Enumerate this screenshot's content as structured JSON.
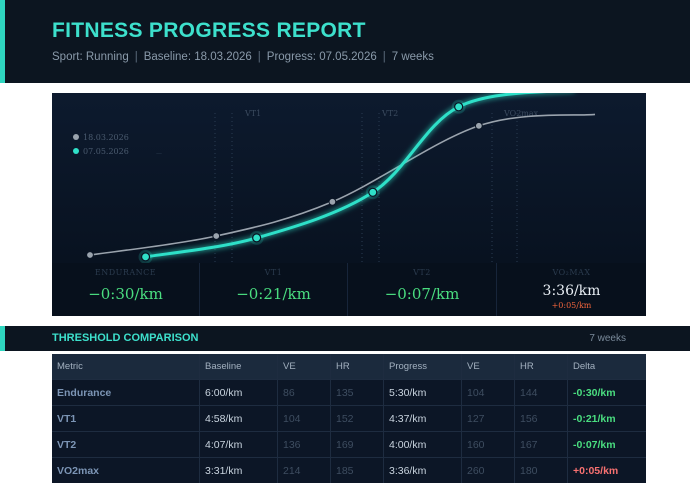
{
  "header": {
    "title": "FITNESS PROGRESS REPORT",
    "sport": "Sport: Running",
    "baseline": "Baseline: 18.03.2026",
    "progress": "Progress: 07.05.2026",
    "duration": "7 weeks"
  },
  "chart_data": {
    "type": "line",
    "legend": [
      "18.03.2026",
      "07.05.2026"
    ],
    "legend_placement": "top-left",
    "legend_extra": "—",
    "zone_labels": [
      "VT1",
      "VT2",
      "VO2max"
    ],
    "colors": {
      "baseline": "#9aa3ad",
      "progress": "#2fe0c8"
    },
    "series": [
      {
        "name": "18.03.2026",
        "points": [
          [
            0.0,
            0.0
          ],
          [
            0.25,
            0.1
          ],
          [
            0.48,
            0.28
          ],
          [
            0.77,
            0.68
          ]
        ]
      },
      {
        "name": "07.05.2026",
        "points": [
          [
            0.11,
            -0.01
          ],
          [
            0.33,
            0.09
          ],
          [
            0.56,
            0.33
          ],
          [
            0.73,
            0.78
          ]
        ]
      }
    ]
  },
  "stats": [
    {
      "label": "ENDURANCE",
      "value": "−0:30/km"
    },
    {
      "label": "VT1",
      "value": "−0:21/km"
    },
    {
      "label": "VT2",
      "value": "−0:07/km"
    },
    {
      "label": "VO₂MAX",
      "value": "3:36/km",
      "sub": "+0:05/km"
    }
  ],
  "section": {
    "title": "THRESHOLD COMPARISON",
    "right": "7 weeks"
  },
  "table": {
    "headers": [
      "Metric",
      "Baseline",
      "VE",
      "HR",
      "Progress",
      "VE",
      "HR",
      "Delta"
    ],
    "rows": [
      {
        "metric": "Endurance",
        "baseline": "6:00/km",
        "ve1": "86",
        "hr1": "135",
        "progress": "5:30/km",
        "ve2": "104",
        "hr2": "144",
        "delta": "-0:30/km",
        "delta_good": true
      },
      {
        "metric": "VT1",
        "baseline": "4:58/km",
        "ve1": "104",
        "hr1": "152",
        "progress": "4:37/km",
        "ve2": "127",
        "hr2": "156",
        "delta": "-0:21/km",
        "delta_good": true
      },
      {
        "metric": "VT2",
        "baseline": "4:07/km",
        "ve1": "136",
        "hr1": "169",
        "progress": "4:00/km",
        "ve2": "160",
        "hr2": "167",
        "delta": "-0:07/km",
        "delta_good": true
      },
      {
        "metric": "VO2max",
        "baseline": "3:31/km",
        "ve1": "214",
        "hr1": "185",
        "progress": "3:36/km",
        "ve2": "260",
        "hr2": "180",
        "delta": "+0:05/km",
        "delta_good": false
      }
    ]
  }
}
